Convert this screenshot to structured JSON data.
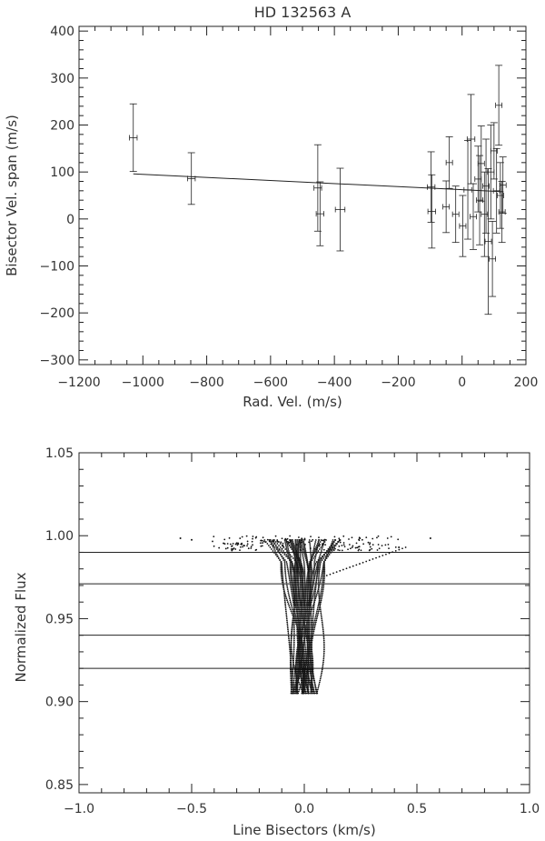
{
  "chart_data": [
    {
      "type": "scatter",
      "title": "HD 132563 A",
      "xlabel": "Rad. Vel. (m/s)",
      "ylabel": "Bisector Vel. span (m/s)",
      "xlim": [
        -1200,
        200
      ],
      "ylim": [
        -310,
        410
      ],
      "xticks": [
        -1200,
        -1000,
        -800,
        -600,
        -400,
        -200,
        0,
        200
      ],
      "yticks": [
        -300,
        -200,
        -100,
        0,
        100,
        200,
        300,
        400
      ],
      "xtick_labels": [
        "−1200",
        "−1000",
        "−800",
        "−600",
        "−400",
        "−200",
        "0",
        "200"
      ],
      "ytick_labels": [
        "−300",
        "−200",
        "−100",
        "0",
        "100",
        "200",
        "300",
        "400"
      ],
      "fit_line": {
        "x": [
          -1030,
          130
        ],
        "y": [
          96,
          58
        ]
      },
      "points": [
        {
          "x": -1030,
          "y": 173,
          "yerr": 72,
          "xerr": 12
        },
        {
          "x": -848,
          "y": 86,
          "yerr": 55,
          "xerr": 12
        },
        {
          "x": -452,
          "y": 66,
          "yerr": 92,
          "xerr": 12
        },
        {
          "x": -445,
          "y": 11,
          "yerr": 68,
          "xerr": 12
        },
        {
          "x": -382,
          "y": 20,
          "yerr": 88,
          "xerr": 15
        },
        {
          "x": -97,
          "y": 68,
          "yerr": 75,
          "xerr": 12
        },
        {
          "x": -95,
          "y": 16,
          "yerr": 78,
          "xerr": 12
        },
        {
          "x": -50,
          "y": 26,
          "yerr": 55,
          "xerr": 10
        },
        {
          "x": -40,
          "y": 120,
          "yerr": 55,
          "xerr": 10
        },
        {
          "x": -20,
          "y": 10,
          "yerr": 60,
          "xerr": 10
        },
        {
          "x": 2,
          "y": -15,
          "yerr": 65,
          "xerr": 10
        },
        {
          "x": 18,
          "y": 62,
          "yerr": 105,
          "xerr": 12
        },
        {
          "x": 28,
          "y": 170,
          "yerr": 95,
          "xerr": 12
        },
        {
          "x": 35,
          "y": 5,
          "yerr": 70,
          "xerr": 10
        },
        {
          "x": 50,
          "y": 85,
          "yerr": 70,
          "xerr": 10
        },
        {
          "x": 60,
          "y": 118,
          "yerr": 80,
          "xerr": 10
        },
        {
          "x": 70,
          "y": 10,
          "yerr": 90,
          "xerr": 10
        },
        {
          "x": 75,
          "y": 70,
          "yerr": 100,
          "xerr": 10
        },
        {
          "x": 82,
          "y": -48,
          "yerr": 155,
          "xerr": 10
        },
        {
          "x": 90,
          "y": 100,
          "yerr": 100,
          "xerr": 10
        },
        {
          "x": 95,
          "y": -85,
          "yerr": 80,
          "xerr": 10
        },
        {
          "x": 100,
          "y": 145,
          "yerr": 60,
          "xerr": 10
        },
        {
          "x": 108,
          "y": 60,
          "yerr": 90,
          "xerr": 10
        },
        {
          "x": 115,
          "y": 242,
          "yerr": 85,
          "xerr": 10
        },
        {
          "x": 120,
          "y": 50,
          "yerr": 70,
          "xerr": 10
        },
        {
          "x": 125,
          "y": 15,
          "yerr": 65,
          "xerr": 10
        },
        {
          "x": 128,
          "y": 72,
          "yerr": 60,
          "xerr": 10
        },
        {
          "x": 55,
          "y": 40,
          "yerr": 95,
          "xerr": 10
        }
      ]
    },
    {
      "type": "scatter",
      "title": "",
      "xlabel": "Line Bisectors (km/s)",
      "ylabel": "Normalized Flux",
      "xlim": [
        -1.0,
        1.0
      ],
      "ylim": [
        0.845,
        1.05
      ],
      "xticks": [
        -1.0,
        -0.5,
        0.0,
        0.5,
        1.0
      ],
      "yticks": [
        0.85,
        0.9,
        0.95,
        1.0,
        1.05
      ],
      "xtick_labels": [
        "−1.0",
        "−0.5",
        "0.0",
        "0.5",
        "1.0"
      ],
      "ytick_labels": [
        "0.85",
        "0.90",
        "0.95",
        "1.00",
        "1.05"
      ],
      "hlines": [
        0.99,
        0.971,
        0.94,
        0.92
      ],
      "bisectors": {
        "count": 40,
        "flux_range": [
          0.905,
          0.998
        ],
        "center_velocity": 0.0,
        "spread": 0.12
      }
    }
  ]
}
